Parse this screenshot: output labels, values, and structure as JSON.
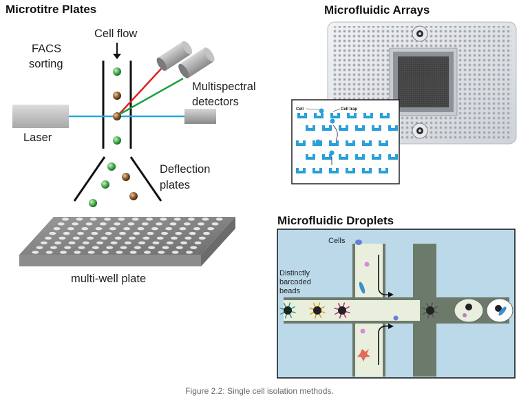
{
  "panels": {
    "microtitre": {
      "title": "Microtitre Plates",
      "cell_flow": "Cell flow",
      "facs_line1": "FACS",
      "facs_line2": "sorting",
      "laser": "Laser",
      "detectors_line1": "Multispectral",
      "detectors_line2": "detectors",
      "deflection_line1": "Deflection",
      "deflection_line2": "plates",
      "plate": "multi-well plate"
    },
    "arrays": {
      "title": "Microfluidic Arrays",
      "cell_label": "Cell",
      "cell_trap_label": "Cell trap"
    },
    "droplets": {
      "title": "Microfluidic Droplets",
      "cells_label": "Cells",
      "beads_line1": "Distinctly",
      "beads_line2": "barcoded",
      "beads_line3": "beads"
    }
  },
  "caption": "Figure 2.2: Single cell isolation methods.",
  "colors": {
    "laser_beam": "#2aa7dc",
    "red_beam": "#e02020",
    "green_beam": "#1aa040",
    "green_cell": "#4caf50",
    "brown_cell": "#8b5a2b",
    "trap_blue": "#2a9fd8",
    "droplet_bg": "#bcd9ea",
    "channel": "#6b7a6b",
    "channel_light": "#e9eedd"
  }
}
